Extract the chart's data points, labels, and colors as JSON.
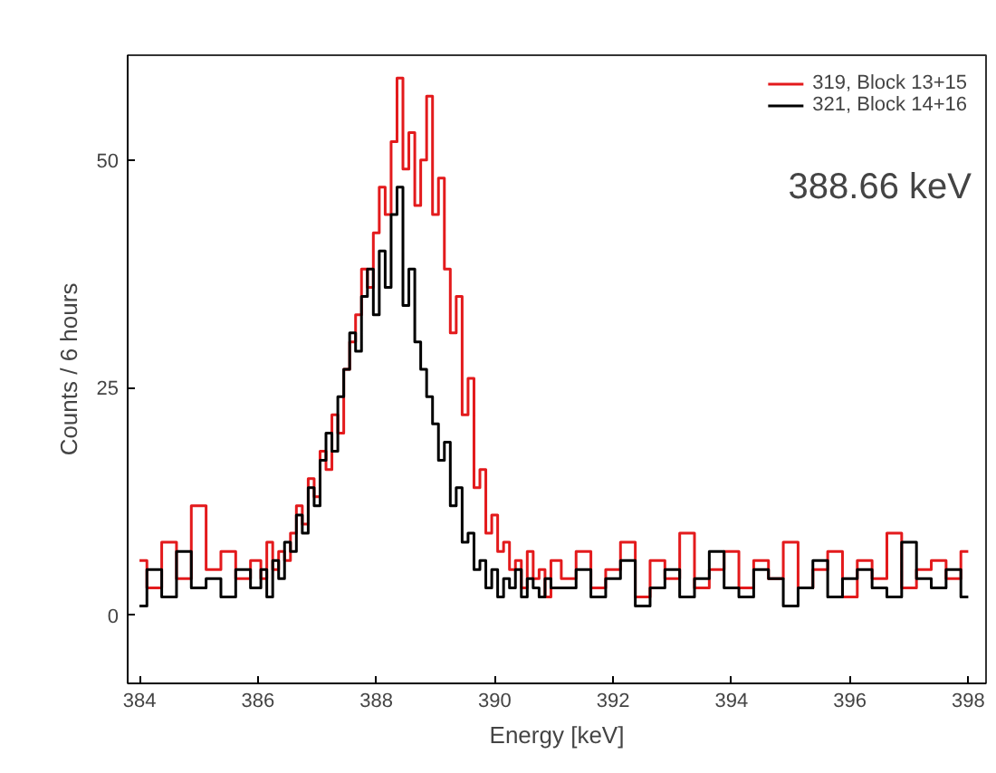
{
  "chart_data": {
    "type": "step",
    "xlabel": "Energy [keV]",
    "ylabel": "Counts / 6 hours",
    "annotations": [
      "388.66 keV"
    ],
    "x": [
      384.0,
      384.25,
      384.5,
      384.75,
      385.0,
      385.25,
      385.5,
      385.75,
      386.0,
      386.1,
      386.2,
      386.3,
      386.4,
      386.5,
      386.6,
      386.7,
      386.8,
      386.9,
      387.0,
      387.1,
      387.2,
      387.3,
      387.4,
      387.5,
      387.6,
      387.7,
      387.8,
      387.9,
      388.0,
      388.1,
      388.2,
      388.3,
      388.4,
      388.5,
      388.6,
      388.7,
      388.8,
      388.9,
      389.0,
      389.1,
      389.2,
      389.3,
      389.4,
      389.5,
      389.6,
      389.7,
      389.8,
      389.9,
      390.0,
      390.1,
      390.2,
      390.3,
      390.4,
      390.5,
      390.6,
      390.7,
      390.8,
      390.9,
      391.0,
      391.25,
      391.5,
      391.75,
      392.0,
      392.25,
      392.5,
      392.75,
      393.0,
      393.25,
      393.5,
      393.75,
      394.0,
      394.25,
      394.5,
      394.75,
      395.0,
      395.25,
      395.5,
      395.75,
      396.0,
      396.25,
      396.5,
      396.75,
      397.0,
      397.25,
      397.5,
      397.75,
      398.0
    ],
    "series": [
      {
        "name": "319, Block 13+15",
        "color": "#e31a1c",
        "values": [
          6,
          3,
          8,
          4,
          12,
          5,
          7,
          4,
          6,
          4,
          8,
          5,
          7,
          6,
          9,
          12,
          10,
          15,
          13,
          18,
          16,
          22,
          20,
          27,
          30,
          33,
          38,
          36,
          42,
          47,
          44,
          52,
          59,
          49,
          53,
          45,
          50,
          57,
          44,
          48,
          38,
          31,
          35,
          22,
          26,
          14,
          16,
          9,
          11,
          7,
          8,
          5,
          6,
          3,
          7,
          4,
          5,
          2,
          6,
          4,
          7,
          3,
          5,
          8,
          2,
          6,
          4,
          9,
          3,
          5,
          7,
          3,
          6,
          4,
          8,
          3,
          5,
          7,
          2,
          6,
          4,
          9,
          3,
          5,
          6,
          4,
          7
        ]
      },
      {
        "name": "321, Block 14+16",
        "color": "#000000",
        "values": [
          1,
          5,
          2,
          7,
          3,
          4,
          2,
          5,
          3,
          5,
          2,
          6,
          4,
          8,
          7,
          11,
          9,
          14,
          12,
          17,
          20,
          18,
          24,
          27,
          31,
          29,
          35,
          38,
          33,
          40,
          36,
          44,
          47,
          34,
          38,
          30,
          27,
          24,
          21,
          17,
          19,
          12,
          14,
          8,
          9,
          5,
          6,
          3,
          5,
          2,
          4,
          3,
          5,
          2,
          4,
          3,
          2,
          4,
          3,
          3,
          5,
          2,
          4,
          6,
          1,
          3,
          5,
          2,
          4,
          7,
          3,
          2,
          5,
          4,
          1,
          3,
          6,
          2,
          4,
          5,
          3,
          2,
          8,
          4,
          3,
          5,
          2
        ]
      }
    ],
    "xlim": [
      383.8,
      398.3
    ],
    "xticks": [
      384,
      386,
      388,
      390,
      392,
      394,
      396,
      398
    ],
    "ylim": [
      -7.5,
      61.5
    ],
    "yticks": [
      0,
      25,
      50
    ],
    "grid": false,
    "legend": "top right",
    "line_style": "solid"
  }
}
